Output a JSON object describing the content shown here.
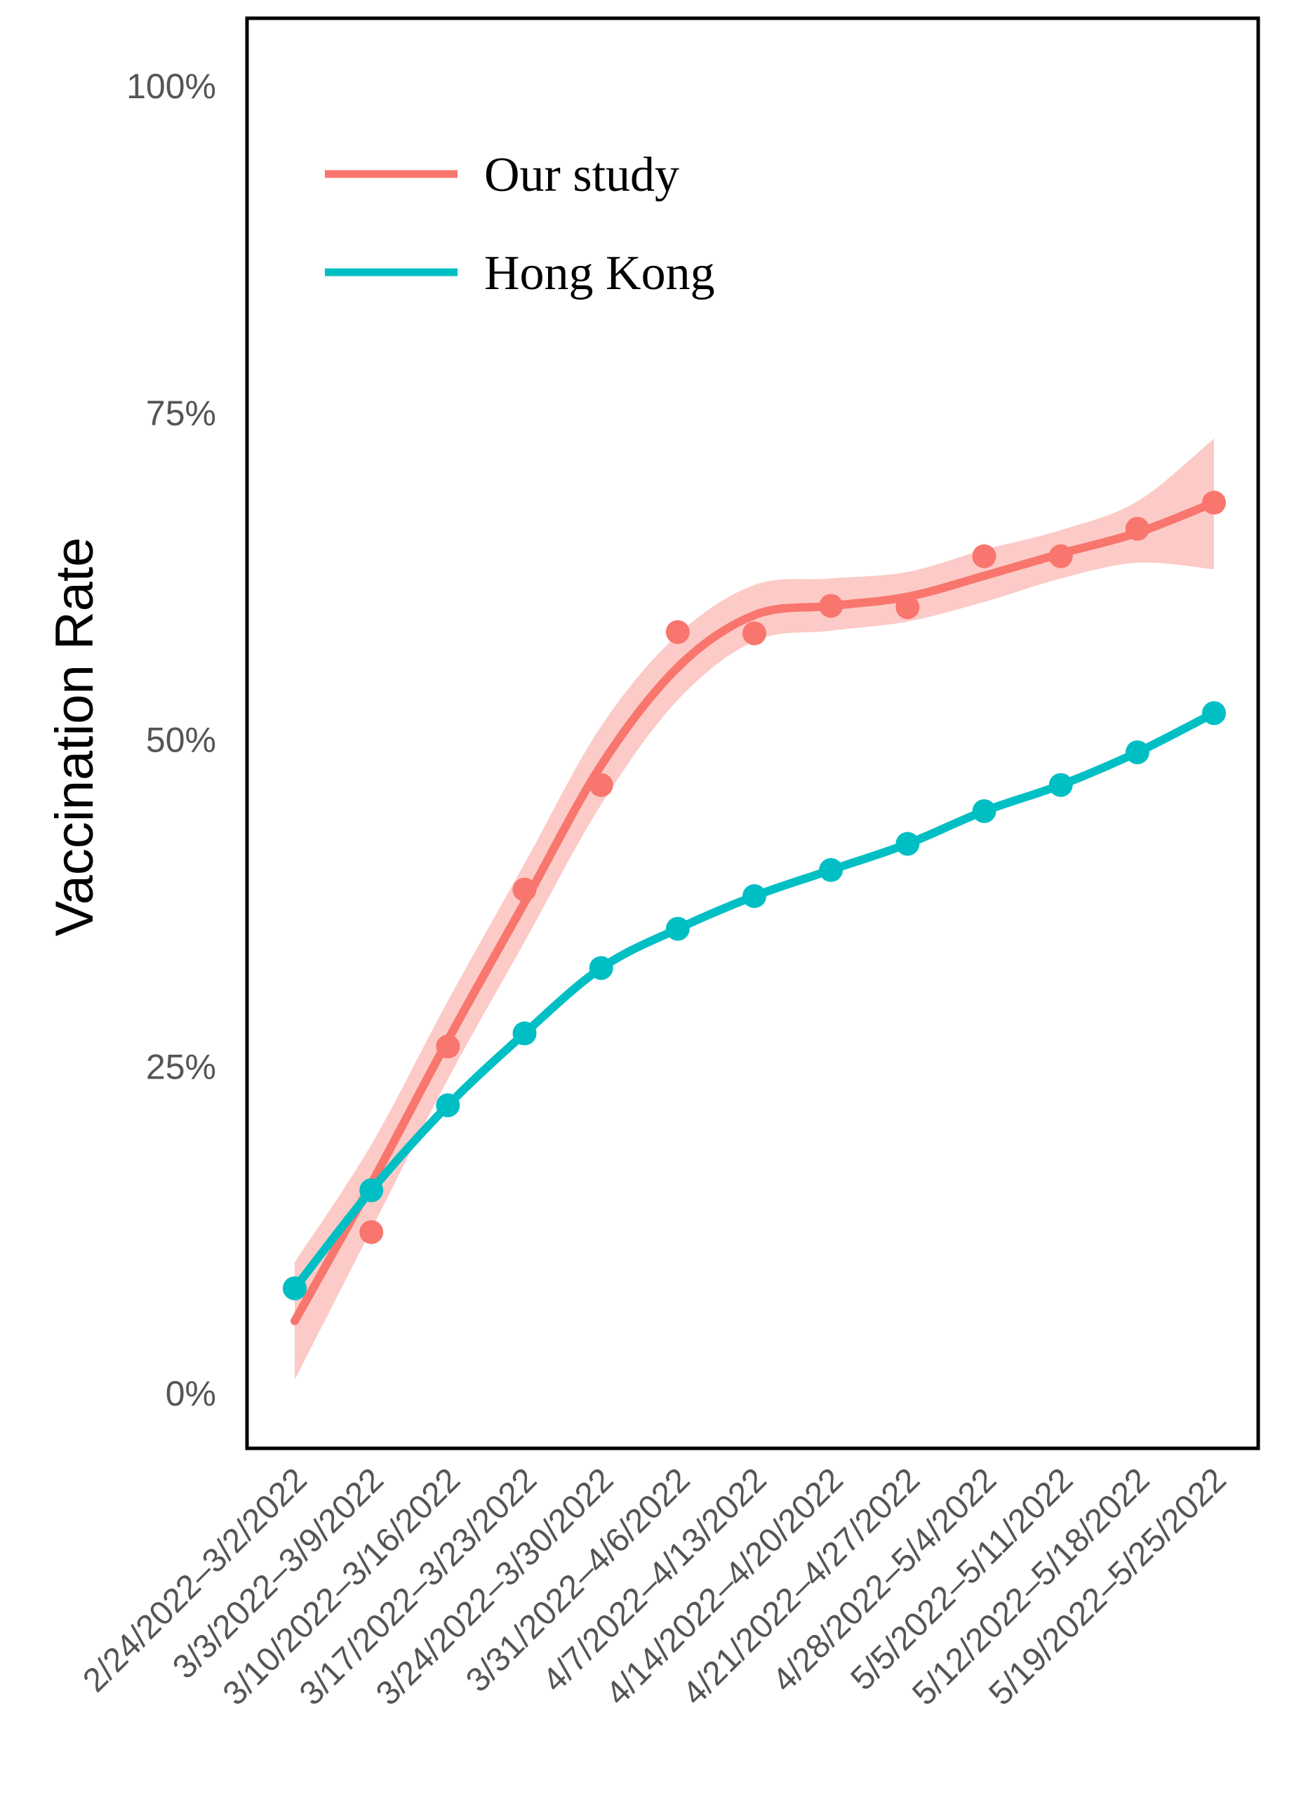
{
  "chart_data": {
    "type": "line",
    "ylabel": "Vaccination Rate",
    "xlabel": "",
    "ylim": [
      0,
      100
    ],
    "y_ticks": [
      {
        "value": 0,
        "label": "0%"
      },
      {
        "value": 25,
        "label": "25%"
      },
      {
        "value": 50,
        "label": "50%"
      },
      {
        "value": 75,
        "label": "75%"
      },
      {
        "value": 100,
        "label": "100%"
      }
    ],
    "categories": [
      "2/24/2022–3/2/2022",
      "3/3/2022–3/9/2022",
      "3/10/2022–3/16/2022",
      "3/17/2022–3/23/2022",
      "3/24/2022–3/30/2022",
      "3/31/2022–4/6/2022",
      "4/7/2022–4/13/2022",
      "4/14/2022–4/20/2022",
      "4/21/2022–4/27/2022",
      "4/28/2022–5/4/2022",
      "5/5/2022–5/11/2022",
      "5/12/2022–5/18/2022",
      "5/19/2022–5/25/2022"
    ],
    "series": [
      {
        "name": "Our study",
        "color": "#F8766D",
        "points": [
          8.0,
          12.3,
          26.5,
          38.5,
          46.5,
          58.2,
          58.1,
          60.2,
          60.1,
          64.0,
          64.0,
          66.1,
          68.1
        ],
        "smooth": [
          5.5,
          16.0,
          27.0,
          37.5,
          48.0,
          55.5,
          59.5,
          60.2,
          60.9,
          62.5,
          64.2,
          65.8,
          68.1
        ],
        "ci_lower": [
          1.0,
          12.5,
          24.0,
          34.5,
          45.0,
          53.0,
          57.5,
          58.3,
          59.0,
          60.5,
          62.3,
          63.5,
          63.0
        ],
        "ci_upper": [
          10.0,
          19.0,
          30.0,
          40.5,
          51.0,
          58.0,
          61.8,
          62.3,
          62.8,
          64.5,
          66.0,
          68.2,
          73.0
        ]
      },
      {
        "name": "Hong Kong",
        "color": "#00BFC4",
        "points": [
          8.0,
          15.5,
          22.0,
          27.5,
          32.5,
          35.5,
          38.0,
          40.0,
          42.0,
          44.5,
          46.5,
          49.0,
          52.0
        ],
        "smooth": [
          8.0,
          15.5,
          22.0,
          27.5,
          32.5,
          35.5,
          38.0,
          40.0,
          42.0,
          44.5,
          46.5,
          49.0,
          52.0
        ]
      }
    ],
    "legend_position": "top-left"
  }
}
